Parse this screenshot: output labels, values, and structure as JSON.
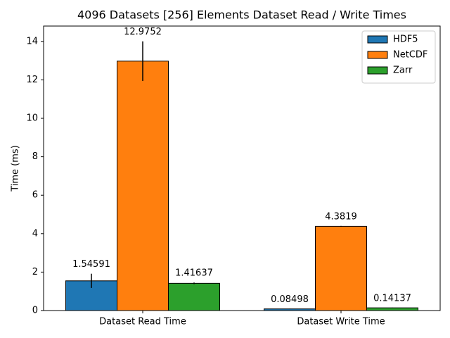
{
  "chart_data": {
    "type": "bar",
    "title": "4096 Datasets [256] Elements Dataset Read / Write Times",
    "ylabel": "Time (ms)",
    "categories": [
      "Dataset Read Time",
      "Dataset Write Time"
    ],
    "series": [
      {
        "name": "HDF5",
        "color": "#1f77b4",
        "values": [
          1.54591,
          0.08498
        ],
        "errors": [
          0.37,
          0.01
        ]
      },
      {
        "name": "NetCDF",
        "color": "#ff7f0e",
        "values": [
          12.9752,
          4.3819
        ],
        "errors": [
          1.03,
          0.02
        ]
      },
      {
        "name": "Zarr",
        "color": "#2ca02c",
        "values": [
          1.41637,
          0.14137
        ],
        "errors": [
          0.04,
          0.01
        ]
      }
    ],
    "ylim": [
      0,
      14.8
    ],
    "yticks": [
      0,
      2,
      4,
      6,
      8,
      10,
      12,
      14
    ],
    "legend": "upper right"
  }
}
